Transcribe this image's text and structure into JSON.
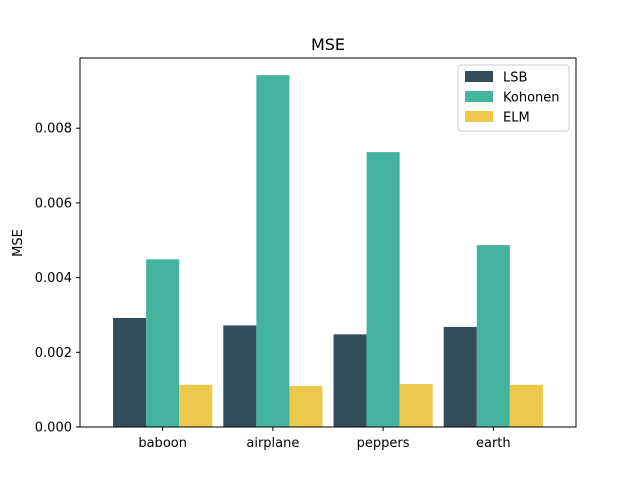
{
  "chart_data": {
    "type": "bar",
    "title": "MSE",
    "xlabel": "",
    "ylabel": "MSE",
    "categories": [
      "baboon",
      "airplane",
      "peppers",
      "earth"
    ],
    "series": [
      {
        "name": "LSB",
        "values": [
          0.00292,
          0.00272,
          0.00248,
          0.00268
        ],
        "color": "#344d5c"
      },
      {
        "name": "Kohonen",
        "values": [
          0.00449,
          0.00942,
          0.00736,
          0.00487
        ],
        "color": "#44b39d"
      },
      {
        "name": "ELM",
        "values": [
          0.00113,
          0.0011,
          0.00115,
          0.00113
        ],
        "color": "#ecc94b"
      }
    ],
    "ylim": [
      0,
      0.00988
    ],
    "yticks": [
      "0.000",
      "0.002",
      "0.004",
      "0.006",
      "0.008"
    ],
    "ytick_values": [
      0,
      0.002,
      0.004,
      0.006,
      0.008
    ],
    "grid": false,
    "legend_position": "top-right"
  }
}
